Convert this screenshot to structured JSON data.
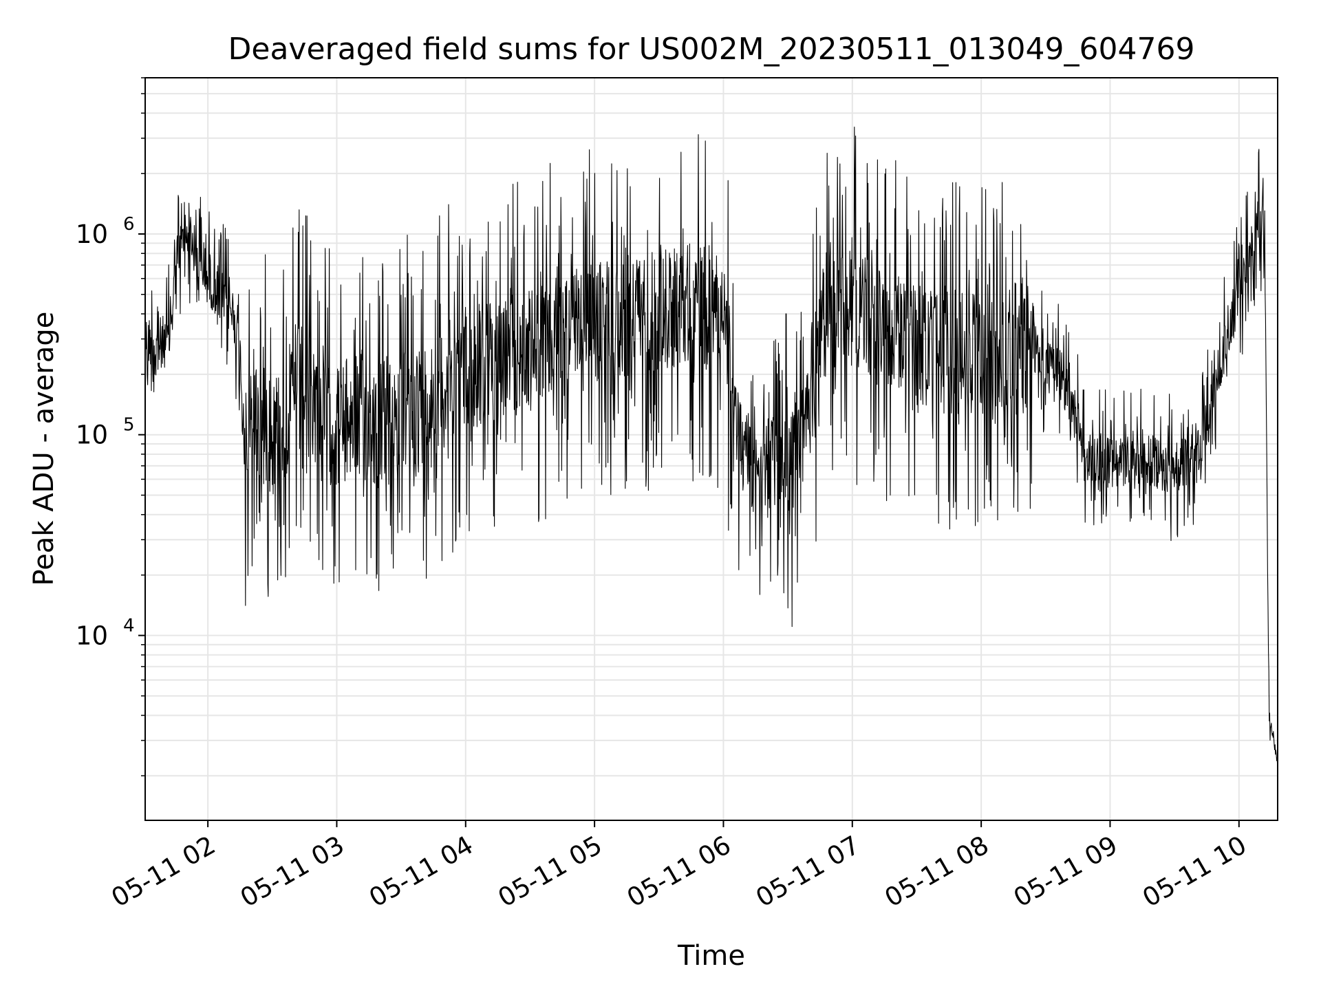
{
  "chart_data": {
    "type": "line",
    "title": "Deaveraged field sums for US002M_20230511_013049_604769",
    "xlabel": "Time",
    "ylabel": "Peak ADU - average",
    "y_scale": "log",
    "ylim": [
      1200,
      6000000
    ],
    "xlim": [
      "05-11 01:30:49",
      "05-11 10:18:00"
    ],
    "grid": true,
    "grid_minor": true,
    "x_ticks": [
      "05-11 02",
      "05-11 03",
      "05-11 04",
      "05-11 05",
      "05-11 06",
      "05-11 07",
      "05-11 08",
      "05-11 09",
      "05-11 10"
    ],
    "y_ticks": [
      {
        "base": "10",
        "exponent": "4",
        "value": 10000
      },
      {
        "base": "10",
        "exponent": "5",
        "value": 100000
      },
      {
        "base": "10",
        "exponent": "6",
        "value": 1000000
      }
    ],
    "line_color": "#000000",
    "series": [
      {
        "x": [
          "05-11 01:30:49",
          "05-11 01:36",
          "05-11 01:42",
          "05-11 01:45",
          "05-11 01:48",
          "05-11 01:51",
          "05-11 01:54",
          "05-11 01:57",
          "05-11 02:00",
          "05-11 02:06",
          "05-11 02:12",
          "05-11 02:15",
          "05-11 02:18",
          "05-11 02:21",
          "05-11 02:24",
          "05-11 02:30",
          "05-11 02:36",
          "05-11 02:42",
          "05-11 02:48",
          "05-11 02:54",
          "05-11 03:00",
          "05-11 03:06",
          "05-11 03:12",
          "05-11 03:18",
          "05-11 03:24",
          "05-11 03:30",
          "05-11 03:36",
          "05-11 03:42",
          "05-11 03:48",
          "05-11 03:54",
          "05-11 04:00",
          "05-11 04:06",
          "05-11 04:12",
          "05-11 04:18",
          "05-11 04:24",
          "05-11 04:30",
          "05-11 04:36",
          "05-11 04:42",
          "05-11 04:48",
          "05-11 04:54",
          "05-11 05:00",
          "05-11 05:06",
          "05-11 05:12",
          "05-11 05:18",
          "05-11 05:24",
          "05-11 05:30",
          "05-11 05:36",
          "05-11 05:42",
          "05-11 05:48",
          "05-11 05:54",
          "05-11 06:00",
          "05-11 06:06",
          "05-11 06:12",
          "05-11 06:18",
          "05-11 06:24",
          "05-11 06:30",
          "05-11 06:36",
          "05-11 06:42",
          "05-11 06:48",
          "05-11 06:54",
          "05-11 07:00",
          "05-11 07:06",
          "05-11 07:12",
          "05-11 07:18",
          "05-11 07:24",
          "05-11 07:30",
          "05-11 07:36",
          "05-11 07:42",
          "05-11 07:48",
          "05-11 07:54",
          "05-11 08:00",
          "05-11 08:06",
          "05-11 08:12",
          "05-11 08:18",
          "05-11 08:24",
          "05-11 08:30",
          "05-11 08:36",
          "05-11 08:42",
          "05-11 08:48",
          "05-11 08:54",
          "05-11 09:00",
          "05-11 09:06",
          "05-11 09:12",
          "05-11 09:18",
          "05-11 09:24",
          "05-11 09:30",
          "05-11 09:36",
          "05-11 09:42",
          "05-11 09:48",
          "05-11 09:54",
          "05-11 10:00",
          "05-11 10:06",
          "05-11 10:09",
          "05-11 10:12",
          "05-11 10:14",
          "05-11 10:16",
          "05-11 10:18"
        ],
        "y": [
          300000,
          280000,
          300000,
          700000,
          900000,
          1100000,
          800000,
          700000,
          600000,
          500000,
          400000,
          250000,
          70000,
          130000,
          110000,
          100000,
          120000,
          180000,
          160000,
          120000,
          110000,
          120000,
          130000,
          110000,
          120000,
          130000,
          140000,
          150000,
          170000,
          190000,
          200000,
          220000,
          230000,
          240000,
          250000,
          260000,
          280000,
          300000,
          320000,
          330000,
          350000,
          370000,
          380000,
          390000,
          400000,
          420000,
          430000,
          450000,
          440000,
          430000,
          420000,
          100000,
          75000,
          72000,
          70000,
          75000,
          78000,
          200000,
          400000,
          500000,
          450000,
          400000,
          380000,
          350000,
          300000,
          280000,
          260000,
          250000,
          260000,
          250000,
          240000,
          230000,
          250000,
          300000,
          260000,
          220000,
          200000,
          150000,
          80000,
          75000,
          72000,
          70000,
          72000,
          75000,
          70000,
          68000,
          72000,
          80000,
          150000,
          300000,
          500000,
          900000,
          1300000,
          1000000,
          4000,
          3000,
          2200
        ]
      }
    ]
  }
}
